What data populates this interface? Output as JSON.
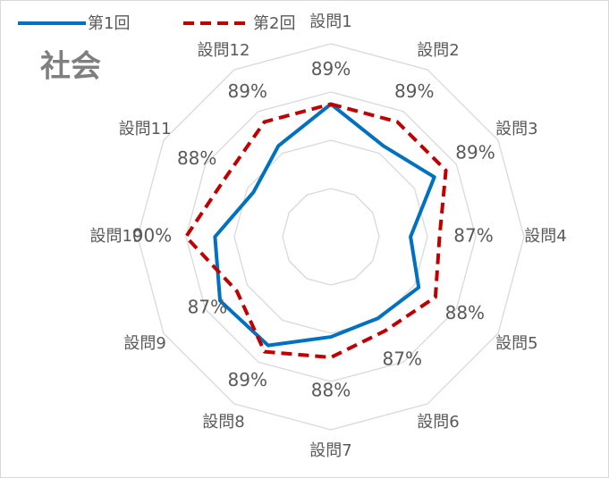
{
  "chart_data": {
    "type": "radar",
    "title": "社会",
    "categories": [
      "設問1",
      "設問2",
      "設問3",
      "設問4",
      "設問5",
      "設問6",
      "設問7",
      "設問8",
      "設問9",
      "設問10",
      "設問11",
      "設問12"
    ],
    "rlim": [
      78,
      94
    ],
    "rticks": [
      82,
      86,
      90,
      94
    ],
    "grid": true,
    "legend": "top",
    "series": [
      {
        "name": "第1回",
        "color": "#0070c0",
        "dash": false,
        "values": [
          89,
          86.7,
          87.9,
          84.6,
          86.4,
          85.8,
          86.3,
          88.4,
          88.6,
          87.6,
          85.4,
          86.7
        ]
      },
      {
        "name": "第2回",
        "color": "#c00000",
        "dash": true,
        "values": [
          89,
          89,
          89,
          87,
          88,
          87,
          88,
          89,
          87,
          90,
          88,
          89
        ],
        "value_labels": [
          "89%",
          "89%",
          "89%",
          "87%",
          "88%",
          "87%",
          "88%",
          "89%",
          "87%",
          "90%",
          "88%",
          "89%"
        ]
      }
    ]
  }
}
